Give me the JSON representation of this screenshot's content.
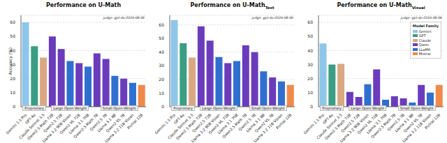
{
  "chart_data": [
    {
      "type": "bar",
      "title": "Performance on U-Math",
      "subtitle": "judge: gpt-4o-2024-08-06",
      "y_label": "Accuracy (%)",
      "categories": [
        "Gemini 1.5 Pro",
        "GPT-4o",
        "Claude Sonnet 3.5",
        "Qwen2.5 Math 72B",
        "Qwen2.5 72B",
        "Llama 3.2 90B Vision",
        "Qwen2 VL 72B",
        "Llama 3.1 70B",
        "Qwen2.5 Math 7B",
        "Qwen2.5 7B",
        "Llama 3.1 8B",
        "Qwen2 VL 7B",
        "Llama 3.2 11B Vision",
        "Pixtral 12B"
      ],
      "values": [
        60,
        43,
        35,
        50,
        41,
        32.5,
        31,
        28.5,
        38,
        34,
        22,
        20,
        17,
        15.5
      ],
      "colors": [
        "#8ec6ea",
        "#3a9e84",
        "#d9a883",
        "#6a3cbc",
        "#6a3cbc",
        "#2f6fd0",
        "#6a3cbc",
        "#2f6fd0",
        "#6a3cbc",
        "#6a3cbc",
        "#2f6fd0",
        "#6a3cbc",
        "#2f6fd0",
        "#ef8a4a"
      ],
      "ylim": [
        0,
        65
      ],
      "yticks": [
        0,
        10,
        20,
        30,
        40,
        50,
        60
      ],
      "grid": true,
      "groups": [
        {
          "label": "Proprietary",
          "members": [
            "Gemini 1.5 Pro",
            "GPT-4o",
            "Claude Sonnet 3.5"
          ]
        },
        {
          "label": "Large Open-Weight",
          "members": [
            "Qwen2.5 Math 72B",
            "Qwen2.5 72B",
            "Llama 3.2 90B Vision",
            "Qwen2 VL 72B",
            "Llama 3.1 70B"
          ]
        },
        {
          "label": "Small Open-Weight",
          "members": [
            "Qwen2.5 Math 7B",
            "Qwen2.5 7B",
            "Llama 3.1 8B",
            "Qwen2 VL 7B",
            "Llama 3.2 11B Vision",
            "Pixtral 12B"
          ]
        }
      ]
    },
    {
      "type": "bar",
      "title": "Performance on U-Math",
      "title_subscript": "Text",
      "subtitle": "judge: gpt-4o-2024-08-06",
      "categories": [
        "Gemini 1.5 Pro",
        "GPT-4o",
        "Claude Sonnet 3.5",
        "Qwen2.5 Math 72B",
        "Qwen2.5 72B",
        "Llama 3.2 90B Vision",
        "Qwen2 VL 72B",
        "Llama 3.1 70B",
        "Qwen2.5 Math 7B",
        "Qwen2.5 7B",
        "Llama 3.1 8B",
        "Qwen2 VL 7B",
        "Llama 3.2 11B Vision",
        "Pixtral 12B"
      ],
      "values": [
        63.5,
        46.5,
        36,
        59,
        48.5,
        36.5,
        32,
        33.5,
        45,
        40,
        26,
        21.5,
        18.5,
        16
      ],
      "colors": [
        "#8ec6ea",
        "#3a9e84",
        "#d9a883",
        "#6a3cbc",
        "#6a3cbc",
        "#2f6fd0",
        "#6a3cbc",
        "#2f6fd0",
        "#6a3cbc",
        "#6a3cbc",
        "#2f6fd0",
        "#6a3cbc",
        "#2f6fd0",
        "#ef8a4a"
      ],
      "ylim": [
        0,
        67
      ],
      "yticks": [
        0,
        10,
        20,
        30,
        40,
        50,
        60
      ],
      "grid": true,
      "groups": [
        {
          "label": "Proprietary",
          "members": [
            "Gemini 1.5 Pro",
            "GPT-4o",
            "Claude Sonnet 3.5"
          ]
        },
        {
          "label": "Large Open-Weight",
          "members": [
            "Qwen2.5 Math 72B",
            "Qwen2.5 72B",
            "Llama 3.2 90B Vision",
            "Qwen2 VL 72B",
            "Llama 3.1 70B"
          ]
        },
        {
          "label": "Small Open-Weight",
          "members": [
            "Qwen2.5 Math 7B",
            "Qwen2.5 7B",
            "Llama 3.1 8B",
            "Qwen2 VL 7B",
            "Llama 3.2 11B Vision",
            "Pixtral 12B"
          ]
        }
      ]
    },
    {
      "type": "bar",
      "title": "Performance on U-Math",
      "title_subscript": "Visual",
      "subtitle": "judge: gpt-4o-2024-08-06",
      "categories": [
        "Gemini 1.5 Pro",
        "GPT-4o",
        "Claude Sonnet 3.5",
        "Qwen2.5 Math 72B",
        "Qwen2.5 72B",
        "Llama 3.2 90B Vision",
        "Qwen2 VL 72B",
        "Llama 3.1 70B",
        "Qwen2.5 Math 7B",
        "Qwen2.5 7B",
        "Llama 3.1 8B",
        "Qwen2 VL 7B",
        "Llama 3.2 11B Vision",
        "Pixtral 12B"
      ],
      "values": [
        45,
        30,
        30.5,
        10.5,
        7,
        16,
        26.5,
        5,
        7.5,
        6,
        3,
        15.5,
        10,
        15.5
      ],
      "colors": [
        "#8ec6ea",
        "#3a9e84",
        "#d9a883",
        "#6a3cbc",
        "#6a3cbc",
        "#2f6fd0",
        "#6a3cbc",
        "#2f6fd0",
        "#6a3cbc",
        "#6a3cbc",
        "#2f6fd0",
        "#6a3cbc",
        "#2f6fd0",
        "#ef8a4a"
      ],
      "ylim": [
        0,
        65
      ],
      "yticks": [
        0,
        10,
        20,
        30,
        40,
        50,
        60
      ],
      "grid": true,
      "legend_title": "Model Family",
      "legend": "upper right",
      "families": [
        {
          "name": "Gemini",
          "color": "#8ec6ea"
        },
        {
          "name": "GPT",
          "color": "#3a9e84"
        },
        {
          "name": "Claude",
          "color": "#d9a883"
        },
        {
          "name": "Qwen",
          "color": "#6a3cbc"
        },
        {
          "name": "LLaMA",
          "color": "#2f6fd0"
        },
        {
          "name": "Mistral",
          "color": "#ef8a4a"
        }
      ],
      "groups": [
        {
          "label": "Proprietary",
          "members": [
            "Gemini 1.5 Pro",
            "GPT-4o",
            "Claude Sonnet 3.5"
          ]
        },
        {
          "label": "Large Open-Weight",
          "members": [
            "Qwen2.5 Math 72B",
            "Qwen2.5 72B",
            "Llama 3.2 90B Vision",
            "Qwen2 VL 72B",
            "Llama 3.1 70B"
          ]
        },
        {
          "name_unused": null,
          "label": "Small Open-Weight",
          "members": [
            "Qwen2.5 Math 7B",
            "Qwen2.5 7B",
            "Llama 3.1 8B",
            "Qwen2 VL 7B",
            "Llama 3.2 11B Vision",
            "Pixtral 12B"
          ]
        }
      ]
    }
  ]
}
